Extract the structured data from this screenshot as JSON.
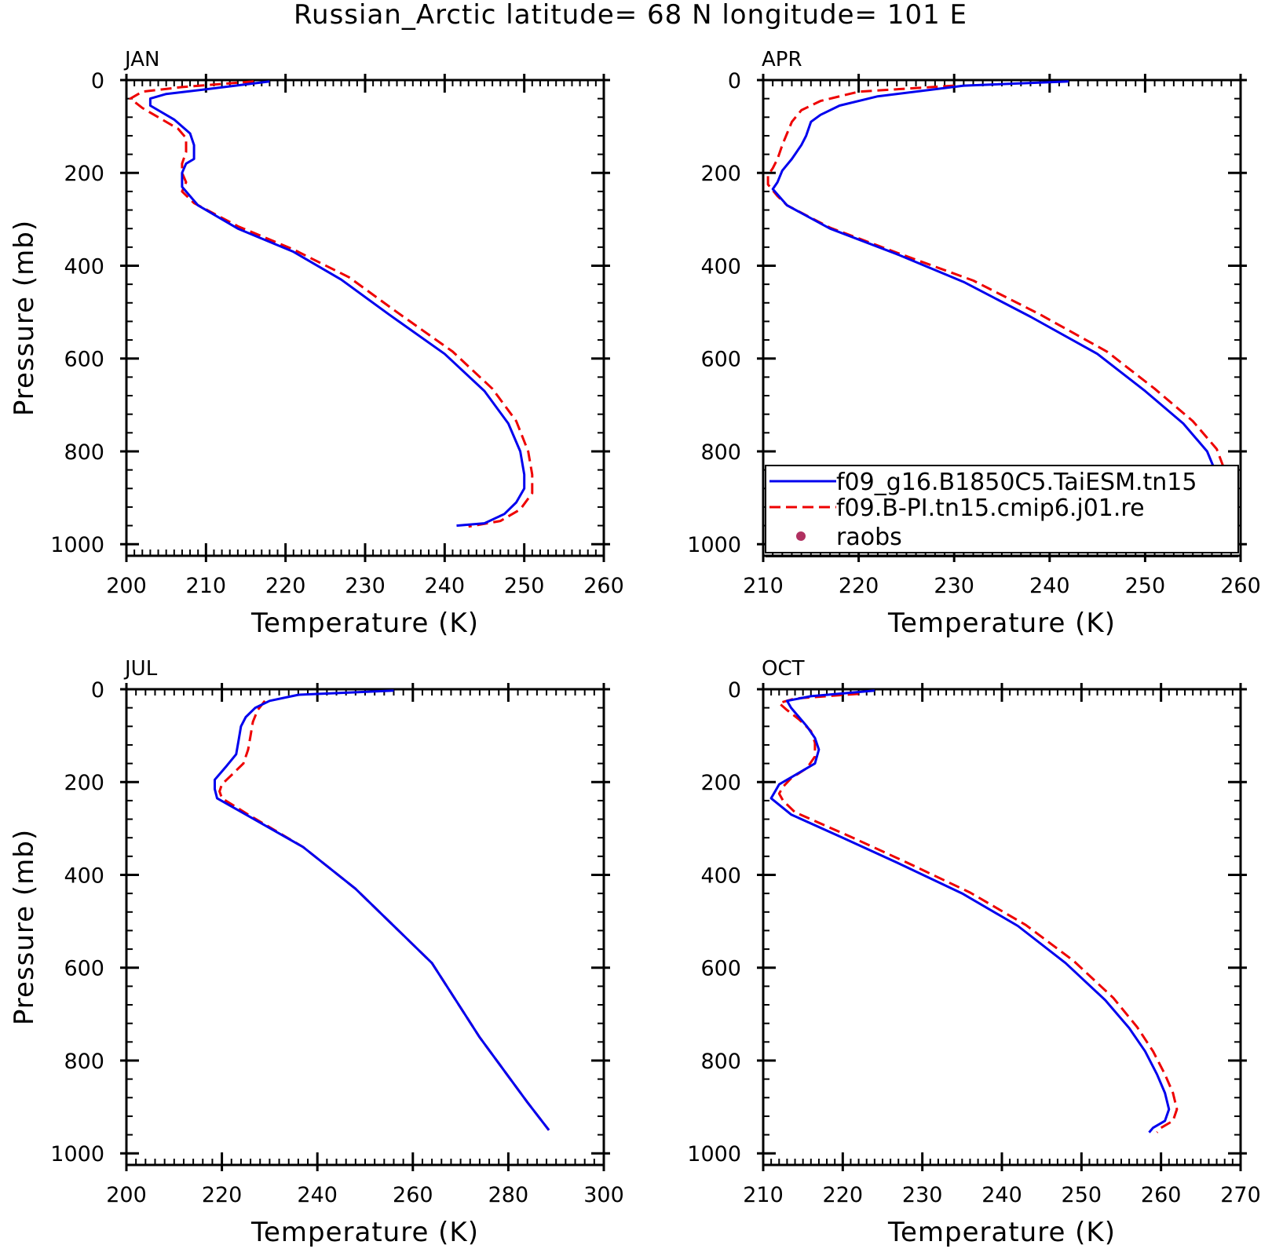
{
  "title": "Russian_Arctic  latitude= 68 N longitude= 101 E",
  "colors": {
    "series1": "#0000ee",
    "series2": "#ee0000",
    "raobs": "#b03060"
  },
  "legend": {
    "placement": "lower-right of APR panel",
    "entries": [
      {
        "label": "f09_g16.B1850C5.TaiESM.tn15",
        "style": "solid",
        "color": "#0000ee"
      },
      {
        "label": "f09.B-PI.tn15.cmip6.j01.re",
        "style": "dashed",
        "color": "#ee0000"
      },
      {
        "label": "raobs",
        "style": "dot",
        "color": "#b03060"
      }
    ]
  },
  "chart_data": [
    {
      "type": "line",
      "panel": "JAN",
      "xlabel": "Temperature (K)",
      "ylabel": "Pressure (mb)",
      "xlim": [
        200,
        260
      ],
      "ylim": [
        1000,
        0
      ],
      "xticks": [
        "200",
        "210",
        "220",
        "230",
        "240",
        "250",
        "260"
      ],
      "yticks": [
        "0",
        "200",
        "400",
        "600",
        "800",
        "1000"
      ],
      "series": [
        {
          "name": "f09_g16.B1850C5.TaiESM.tn15",
          "points": [
            [
              218,
              3
            ],
            [
              210,
              20
            ],
            [
              205,
              30
            ],
            [
              203,
              40
            ],
            [
              203,
              55
            ],
            [
              206,
              85
            ],
            [
              208,
              115
            ],
            [
              208.5,
              140
            ],
            [
              208.5,
              170
            ],
            [
              207.5,
              180
            ],
            [
              207,
              200
            ],
            [
              207,
              230
            ],
            [
              209,
              270
            ],
            [
              214,
              320
            ],
            [
              221,
              370
            ],
            [
              227,
              430
            ],
            [
              233,
              505
            ],
            [
              240,
              590
            ],
            [
              245,
              670
            ],
            [
              248,
              740
            ],
            [
              249.5,
              800
            ],
            [
              250,
              850
            ],
            [
              250,
              880
            ],
            [
              249,
              910
            ],
            [
              247.5,
              935
            ],
            [
              245,
              955
            ],
            [
              241.5,
              960
            ]
          ]
        },
        {
          "name": "f09.B-PI.tn15.cmip6.j01.re",
          "points": [
            [
              216,
              3
            ],
            [
              207,
              15
            ],
            [
              202,
              25
            ],
            [
              200.5,
              40
            ],
            [
              202,
              60
            ],
            [
              204.5,
              85
            ],
            [
              206.5,
              105
            ],
            [
              207.5,
              125
            ],
            [
              207.5,
              155
            ],
            [
              207,
              180
            ],
            [
              207,
              200
            ],
            [
              207.5,
              220
            ],
            [
              207,
              240
            ],
            [
              208.5,
              265
            ],
            [
              214,
              315
            ],
            [
              221,
              365
            ],
            [
              228,
              425
            ],
            [
              234,
              500
            ],
            [
              241,
              585
            ],
            [
              246,
              665
            ],
            [
              249,
              735
            ],
            [
              250.5,
              800
            ],
            [
              251,
              850
            ],
            [
              251,
              890
            ],
            [
              249.5,
              925
            ],
            [
              247,
              950
            ],
            [
              243,
              962
            ]
          ]
        }
      ]
    },
    {
      "type": "line",
      "panel": "APR",
      "xlabel": "Temperature (K)",
      "ylabel": "",
      "xlim": [
        210,
        260
      ],
      "ylim": [
        1000,
        0
      ],
      "xticks": [
        "210",
        "220",
        "230",
        "240",
        "250",
        "260"
      ],
      "yticks": [
        "0",
        "200",
        "400",
        "600",
        "800",
        "1000"
      ],
      "series": [
        {
          "name": "f09_g16.B1850C5.TaiESM.tn15",
          "points": [
            [
              242,
              3
            ],
            [
              231,
              12
            ],
            [
              222,
              35
            ],
            [
              218,
              55
            ],
            [
              216,
              75
            ],
            [
              215,
              90
            ],
            [
              214.5,
              120
            ],
            [
              214,
              140
            ],
            [
              213,
              170
            ],
            [
              212,
              195
            ],
            [
              211.5,
              220
            ],
            [
              211,
              235
            ],
            [
              212.5,
              270
            ],
            [
              217,
              320
            ],
            [
              224,
              375
            ],
            [
              231,
              435
            ],
            [
              238,
              510
            ],
            [
              245,
              590
            ],
            [
              250,
              670
            ],
            [
              254,
              740
            ],
            [
              256.5,
              800
            ],
            [
              257.5,
              850
            ],
            [
              258,
              880
            ],
            [
              258,
              915
            ],
            [
              257.5,
              935
            ],
            [
              256.5,
              950
            ],
            [
              255,
              960
            ]
          ]
        },
        {
          "name": "f09.B-PI.tn15.cmip6.j01.re",
          "points": [
            [
              230,
              12
            ],
            [
              220,
              25
            ],
            [
              216,
              45
            ],
            [
              214,
              65
            ],
            [
              213,
              90
            ],
            [
              212.5,
              115
            ],
            [
              212,
              140
            ],
            [
              211.5,
              170
            ],
            [
              211,
              190
            ],
            [
              210.5,
              205
            ],
            [
              210.5,
              225
            ],
            [
              211.5,
              250
            ],
            [
              212.5,
              270
            ],
            [
              217,
              318
            ],
            [
              224,
              372
            ],
            [
              232,
              432
            ],
            [
              239,
              505
            ],
            [
              246,
              585
            ],
            [
              251,
              665
            ],
            [
              255,
              735
            ],
            [
              257.5,
              795
            ],
            [
              258.5,
              850
            ],
            [
              259,
              880
            ],
            [
              259,
              915
            ],
            [
              258.5,
              935
            ],
            [
              257.5,
              950
            ],
            [
              256,
              960
            ]
          ]
        }
      ]
    },
    {
      "type": "line",
      "panel": "JUL",
      "xlabel": "Temperature (K)",
      "ylabel": "Pressure (mb)",
      "xlim": [
        200,
        300
      ],
      "ylim": [
        1000,
        0
      ],
      "xticks": [
        "200",
        "220",
        "240",
        "260",
        "280",
        "300"
      ],
      "yticks": [
        "0",
        "200",
        "400",
        "600",
        "800",
        "1000"
      ],
      "series": [
        {
          "name": "f09_g16.B1850C5.TaiESM.tn15",
          "points": [
            [
              256,
              3
            ],
            [
              236,
              12
            ],
            [
              230,
              25
            ],
            [
              227,
              40
            ],
            [
              225,
              60
            ],
            [
              224,
              80
            ],
            [
              223.5,
              110
            ],
            [
              223,
              140
            ],
            [
              221,
              165
            ],
            [
              218.5,
              195
            ],
            [
              218.5,
              215
            ],
            [
              219,
              235
            ],
            [
              225,
              270
            ],
            [
              237,
              340
            ],
            [
              248,
              430
            ],
            [
              256,
              510
            ],
            [
              264,
              590
            ],
            [
              269,
              670
            ],
            [
              274,
              750
            ],
            [
              279,
              820
            ],
            [
              284,
              890
            ],
            [
              288.5,
              950
            ]
          ]
        },
        {
          "name": "f09.B-PI.tn15.cmip6.j01.re",
          "points": [
            [
              229,
              25
            ],
            [
              227.5,
              45
            ],
            [
              226.5,
              70
            ],
            [
              226,
              100
            ],
            [
              225.5,
              130
            ],
            [
              224.5,
              160
            ],
            [
              222,
              185
            ],
            [
              220,
              205
            ],
            [
              219.5,
              220
            ],
            [
              220,
              235
            ],
            [
              225.5,
              270
            ],
            [
              237,
              340
            ],
            [
              248,
              430
            ],
            [
              256,
              510
            ],
            [
              264,
              590
            ],
            [
              269,
              670
            ],
            [
              274,
              750
            ],
            [
              279,
              820
            ],
            [
              284,
              890
            ],
            [
              288.5,
              950
            ]
          ]
        }
      ]
    },
    {
      "type": "line",
      "panel": "OCT",
      "xlabel": "Temperature (K)",
      "ylabel": "",
      "xlim": [
        210,
        270
      ],
      "ylim": [
        1000,
        0
      ],
      "xticks": [
        "210",
        "220",
        "230",
        "240",
        "250",
        "260",
        "270"
      ],
      "yticks": [
        "0",
        "200",
        "400",
        "600",
        "800",
        "1000"
      ],
      "series": [
        {
          "name": "f09_g16.B1850C5.TaiESM.tn15",
          "points": [
            [
              224,
              3
            ],
            [
              216,
              15
            ],
            [
              213,
              25
            ],
            [
              213.5,
              40
            ],
            [
              214.5,
              60
            ],
            [
              215.5,
              80
            ],
            [
              216.5,
              105
            ],
            [
              217,
              130
            ],
            [
              216.5,
              160
            ],
            [
              214,
              185
            ],
            [
              212,
              205
            ],
            [
              211.5,
              220
            ],
            [
              211,
              235
            ],
            [
              213.5,
              270
            ],
            [
              220,
              320
            ],
            [
              227,
              375
            ],
            [
              235,
              440
            ],
            [
              242,
              510
            ],
            [
              248,
              590
            ],
            [
              253,
              670
            ],
            [
              256,
              730
            ],
            [
              258,
              780
            ],
            [
              259.5,
              830
            ],
            [
              260.5,
              870
            ],
            [
              261,
              905
            ],
            [
              260.5,
              930
            ],
            [
              259,
              945
            ],
            [
              258.5,
              955
            ]
          ]
        },
        {
          "name": "f09.B-PI.tn15.cmip6.j01.re",
          "points": [
            [
              222,
              10
            ],
            [
              214,
              20
            ],
            [
              212,
              30
            ],
            [
              213,
              45
            ],
            [
              214.5,
              65
            ],
            [
              216,
              90
            ],
            [
              216.5,
              115
            ],
            [
              216.5,
              145
            ],
            [
              215.5,
              170
            ],
            [
              213.5,
              192
            ],
            [
              212.5,
              210
            ],
            [
              212,
              225
            ],
            [
              212.5,
              240
            ],
            [
              214,
              265
            ],
            [
              221,
              318
            ],
            [
              228,
              373
            ],
            [
              236,
              438
            ],
            [
              243,
              508
            ],
            [
              249,
              585
            ],
            [
              254,
              665
            ],
            [
              257,
              728
            ],
            [
              259,
              780
            ],
            [
              260.5,
              830
            ],
            [
              261.5,
              870
            ],
            [
              262,
              905
            ],
            [
              261.5,
              930
            ],
            [
              260,
              945
            ],
            [
              259.5,
              955
            ]
          ]
        }
      ]
    }
  ]
}
